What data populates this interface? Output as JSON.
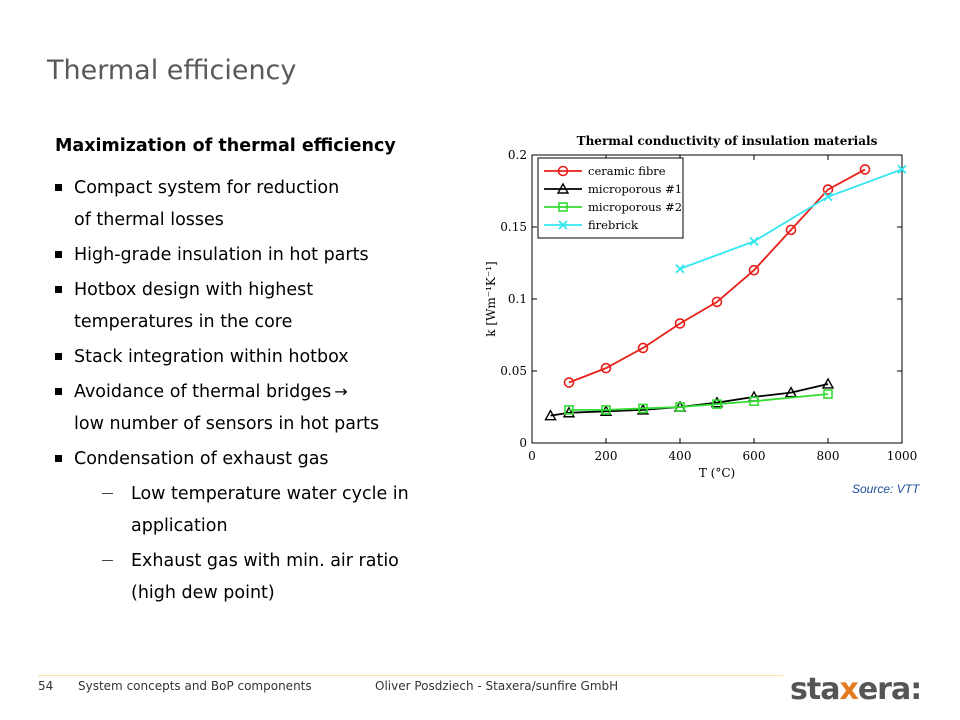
{
  "title": "Thermal efficiency",
  "heading": "Maximization of thermal efficiency",
  "bullets": [
    {
      "line1": "Compact system for reduction",
      "line2": "of thermal losses"
    },
    {
      "line1": "High-grade insulation in hot parts"
    },
    {
      "line1": "Hotbox design with highest",
      "line2": "temperatures in the core"
    },
    {
      "line1": "Stack integration within hotbox"
    },
    {
      "line1": "Avoidance of thermal bridges",
      "arrow": "→",
      "line2": "low number of sensors in hot parts"
    },
    {
      "line1": "Condensation of exhaust gas"
    }
  ],
  "subbullets": [
    {
      "line1": "Low temperature water cycle in",
      "line2": "application"
    },
    {
      "line1": "Exhaust gas with min. air ratio",
      "line2": "(high dew point)"
    }
  ],
  "source": "Source: VTT",
  "footer": {
    "page": "54",
    "section": "System concepts and BoP components",
    "author": "Oliver Posdziech - Staxera/sunfire GmbH"
  },
  "logo": {
    "pre": "sta",
    "x": "x",
    "post": "era",
    "tail": ":"
  },
  "colors": {
    "ceramic": "#e8201a",
    "micro1": "#000000",
    "micro2": "#33dd33",
    "firebrick": "#33e6f0"
  },
  "chart_data": {
    "type": "line",
    "title": "Thermal conductivity of insulation materials",
    "xlabel": "T (°C)",
    "ylabel": "k [Wm⁻¹K⁻¹]",
    "xlim": [
      0,
      1000
    ],
    "ylim": [
      0,
      0.2
    ],
    "xticks": [
      0,
      200,
      400,
      600,
      800,
      1000
    ],
    "yticks": [
      0,
      0.05,
      0.1,
      0.15,
      0.2
    ],
    "ytick_labels": [
      "0",
      "0.05",
      "0.1",
      "0.15",
      "0.2"
    ],
    "legend_position": "top-left",
    "grid": false,
    "series": [
      {
        "name": "ceramic fibre",
        "marker": "circle",
        "color": "#e8201a",
        "x": [
          100,
          200,
          300,
          400,
          500,
          600,
          700,
          800,
          900
        ],
        "y": [
          0.042,
          0.052,
          0.066,
          0.083,
          0.098,
          0.12,
          0.148,
          0.176,
          0.19
        ]
      },
      {
        "name": "microporous #1",
        "marker": "triangle",
        "color": "#000000",
        "x": [
          50,
          100,
          200,
          300,
          400,
          500,
          600,
          700,
          800
        ],
        "y": [
          0.019,
          0.021,
          0.022,
          0.023,
          0.025,
          0.028,
          0.032,
          0.035,
          0.041
        ]
      },
      {
        "name": "microporous #2",
        "marker": "square",
        "color": "#33dd33",
        "x": [
          100,
          200,
          300,
          400,
          500,
          600,
          800
        ],
        "y": [
          0.023,
          0.023,
          0.024,
          0.025,
          0.027,
          0.029,
          0.034
        ]
      },
      {
        "name": "firebrick",
        "marker": "x",
        "color": "#33e6f0",
        "x": [
          400,
          600,
          800,
          1000
        ],
        "y": [
          0.121,
          0.14,
          0.171,
          0.19
        ]
      }
    ]
  }
}
